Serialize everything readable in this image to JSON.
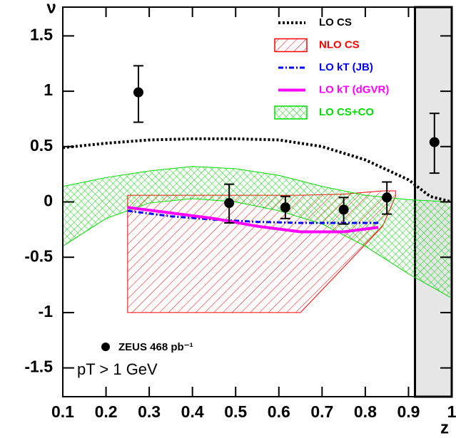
{
  "chart_data": {
    "type": "physics-plot",
    "xlabel": "z",
    "ylabel": "ν",
    "xlim": [
      0.1,
      1.0
    ],
    "ylim": [
      -1.76,
      1.76
    ],
    "xticks": [
      0.1,
      0.2,
      0.3,
      0.4,
      0.5,
      0.6,
      0.7,
      0.8,
      0.9,
      1
    ],
    "yticks": [
      -1.5,
      -1,
      -0.5,
      0,
      0.5,
      1,
      1.5
    ],
    "shaded_xrange": [
      0.915,
      1.0
    ],
    "legend": "upper right",
    "annotation": "pT > 1 GeV",
    "series": [
      {
        "name": "LO CS",
        "color": "#000000",
        "kind": "line",
        "style": "dotted",
        "x": [
          0.1,
          0.2,
          0.3,
          0.4,
          0.5,
          0.6,
          0.7,
          0.8,
          0.9,
          0.95,
          1.0
        ],
        "values": [
          0.49,
          0.53,
          0.56,
          0.57,
          0.57,
          0.56,
          0.5,
          0.38,
          0.2,
          0.05,
          0.0
        ]
      },
      {
        "name": "NLO CS",
        "color": "#ff0000",
        "kind": "band",
        "hatch": "single",
        "x": [
          0.25,
          0.45,
          0.65,
          0.75,
          0.84,
          0.87
        ],
        "upper": [
          0.06,
          0.06,
          0.06,
          0.07,
          0.1,
          0.1
        ],
        "lower": [
          -1.0,
          -1.0,
          -1.0,
          -0.59,
          -0.22,
          0.05
        ]
      },
      {
        "name": "LO kT (JB)",
        "color": "#0000ff",
        "kind": "line",
        "style": "dashdot",
        "x": [
          0.25,
          0.35,
          0.45,
          0.55,
          0.65,
          0.75,
          0.83
        ],
        "values": [
          -0.08,
          -0.13,
          -0.16,
          -0.18,
          -0.19,
          -0.19,
          -0.19
        ]
      },
      {
        "name": "LO kT (dGVR)",
        "color": "#ff00ff",
        "kind": "line",
        "style": "solid",
        "x": [
          0.25,
          0.35,
          0.45,
          0.55,
          0.65,
          0.75,
          0.83
        ],
        "values": [
          -0.05,
          -0.1,
          -0.15,
          -0.22,
          -0.27,
          -0.27,
          -0.23
        ]
      },
      {
        "name": "LO CS+CO",
        "color": "#00dd00",
        "kind": "band",
        "hatch": "cross",
        "x": [
          0.1,
          0.2,
          0.3,
          0.4,
          0.5,
          0.6,
          0.7,
          0.8,
          0.9,
          1.0
        ],
        "upper": [
          0.14,
          0.22,
          0.28,
          0.32,
          0.3,
          0.24,
          0.14,
          0.06,
          0.02,
          0.0
        ],
        "lower": [
          -0.4,
          -0.15,
          -0.01,
          0.03,
          0.0,
          -0.08,
          -0.2,
          -0.4,
          -0.65,
          -0.87
        ]
      }
    ],
    "points": {
      "name": "ZEUS 468 pb⁻¹",
      "color": "#000000",
      "x": [
        0.275,
        0.485,
        0.615,
        0.75,
        0.85,
        0.96
      ],
      "values": [
        0.99,
        -0.01,
        -0.05,
        -0.07,
        0.04,
        0.54
      ],
      "err_low": [
        0.27,
        0.18,
        0.1,
        0.13,
        0.15,
        0.28
      ],
      "err_high": [
        0.24,
        0.17,
        0.1,
        0.11,
        0.14,
        0.26
      ]
    }
  }
}
